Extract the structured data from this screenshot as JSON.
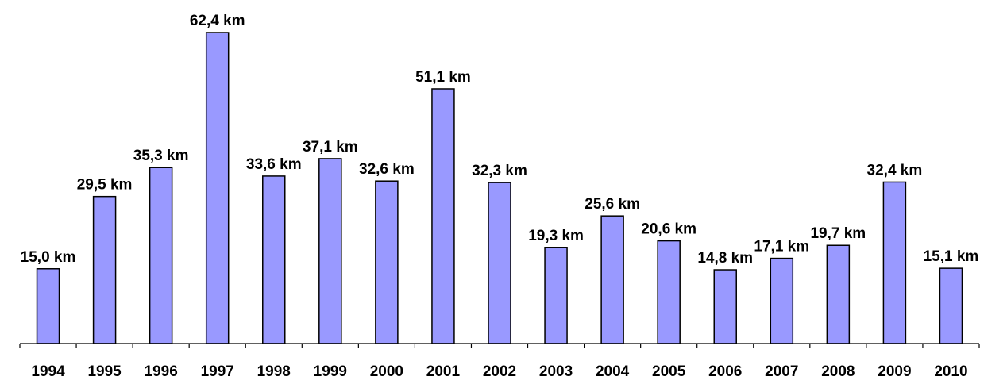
{
  "chart_data": {
    "type": "bar",
    "categories": [
      "1994",
      "1995",
      "1996",
      "1997",
      "1998",
      "1999",
      "2000",
      "2001",
      "2002",
      "2003",
      "2004",
      "2005",
      "2006",
      "2007",
      "2008",
      "2009",
      "2010"
    ],
    "values": [
      15.0,
      29.5,
      35.3,
      62.4,
      33.6,
      37.1,
      32.6,
      51.1,
      32.3,
      19.3,
      25.6,
      20.6,
      14.8,
      17.1,
      19.7,
      32.4,
      15.1
    ],
    "data_labels": [
      "15,0 km",
      "29,5 km",
      "35,3 km",
      "62,4 km",
      "33,6 km",
      "37,1 km",
      "32,6 km",
      "51,1 km",
      "32,3 km",
      "19,3 km",
      "25,6 km",
      "20,6 km",
      "14,8 km",
      "17,1 km",
      "19,7 km",
      "32,4 km",
      "15,1 km"
    ],
    "unit": "km",
    "ylim": [
      0,
      62.4
    ],
    "grid": false,
    "legend": "none",
    "bar_color": "#9999ff",
    "title": "",
    "xlabel": "",
    "ylabel": ""
  }
}
